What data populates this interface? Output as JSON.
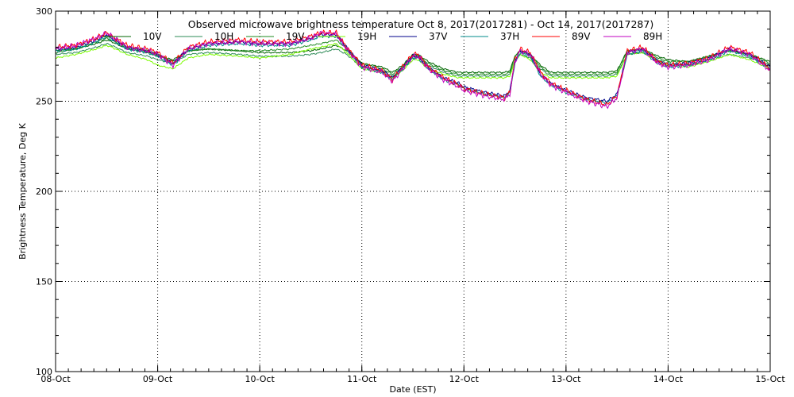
{
  "chart_data": {
    "type": "line",
    "title": "Observed microwave brightness temperature Oct  8, 2017(2017281) - Oct 14, 2017(2017287)",
    "xlabel": "Date (EST)",
    "ylabel": "Brightness Temperature, Deg K",
    "ylim": [
      100,
      300
    ],
    "yticks": [
      100,
      150,
      200,
      250,
      300
    ],
    "xlim_days": [
      0,
      7
    ],
    "xtick_labels": [
      "08-Oct",
      "09-Oct",
      "10-Oct",
      "11-Oct",
      "12-Oct",
      "13-Oct",
      "14-Oct",
      "15-Oct"
    ],
    "grid": "dotted",
    "legend_position": "top",
    "series": [
      {
        "name": "10V",
        "color": "#006400",
        "x": [
          0,
          0.2,
          0.4,
          0.5,
          0.55,
          0.7,
          0.9,
          1.0,
          1.15,
          1.3,
          1.5,
          1.8,
          2.0,
          2.3,
          2.5,
          2.6,
          2.75,
          2.85,
          3.0,
          3.2,
          3.3,
          3.4,
          3.5,
          3.55,
          3.65,
          3.8,
          3.95,
          4.0,
          4.2,
          4.4,
          4.45,
          4.5,
          4.55,
          4.65,
          4.75,
          4.85,
          5.0,
          5.2,
          5.4,
          5.5,
          5.6,
          5.75,
          5.9,
          6.0,
          6.2,
          6.4,
          6.6,
          6.8,
          7.0
        ],
        "y": [
          278,
          279,
          282,
          284,
          283,
          279,
          277,
          275,
          273,
          278,
          279,
          278,
          277,
          277,
          278,
          279,
          281,
          278,
          271,
          269,
          266,
          270,
          276,
          276,
          272,
          268,
          266,
          266,
          266,
          266,
          267,
          275,
          278,
          276,
          270,
          266,
          266,
          266,
          266,
          267,
          278,
          279,
          275,
          273,
          272,
          275,
          278,
          276,
          272
        ]
      },
      {
        "name": "10H",
        "color": "#2e8b57",
        "x": [
          0,
          0.2,
          0.4,
          0.5,
          0.55,
          0.7,
          0.9,
          1.0,
          1.15,
          1.3,
          1.5,
          1.8,
          2.0,
          2.3,
          2.5,
          2.6,
          2.75,
          2.85,
          3.0,
          3.2,
          3.3,
          3.4,
          3.5,
          3.55,
          3.65,
          3.8,
          3.95,
          4.0,
          4.2,
          4.4,
          4.45,
          4.5,
          4.55,
          4.65,
          4.75,
          4.85,
          5.0,
          5.2,
          5.4,
          5.5,
          5.6,
          5.75,
          5.9,
          6.0,
          6.2,
          6.4,
          6.6,
          6.8,
          7.0
        ],
        "y": [
          276,
          277,
          280,
          282,
          281,
          277,
          275,
          273,
          271,
          276,
          277,
          276,
          275,
          275,
          276,
          277,
          279,
          276,
          269,
          267,
          264,
          268,
          274,
          274,
          270,
          266,
          264,
          264,
          264,
          264,
          265,
          273,
          276,
          274,
          268,
          264,
          264,
          264,
          264,
          265,
          276,
          277,
          273,
          271,
          270,
          273,
          276,
          274,
          270
        ]
      },
      {
        "name": "19V",
        "color": "#228b22",
        "x": [
          0,
          0.2,
          0.4,
          0.5,
          0.55,
          0.7,
          0.9,
          1.0,
          1.15,
          1.3,
          1.5,
          1.8,
          2.0,
          2.3,
          2.5,
          2.6,
          2.75,
          2.85,
          3.0,
          3.2,
          3.3,
          3.4,
          3.5,
          3.55,
          3.65,
          3.8,
          3.95,
          4.0,
          4.2,
          4.4,
          4.45,
          4.5,
          4.55,
          4.65,
          4.75,
          4.85,
          5.0,
          5.2,
          5.4,
          5.5,
          5.6,
          5.75,
          5.9,
          6.0,
          6.2,
          6.4,
          6.6,
          6.8,
          7.0
        ],
        "y": [
          277,
          279,
          283,
          285,
          284,
          280,
          278,
          276,
          272,
          278,
          279,
          278,
          278,
          279,
          281,
          282,
          284,
          279,
          271,
          268,
          265,
          269,
          275,
          275,
          271,
          267,
          265,
          265,
          265,
          265,
          266,
          275,
          278,
          276,
          269,
          265,
          265,
          265,
          265,
          266,
          278,
          279,
          274,
          272,
          272,
          275,
          278,
          276,
          271
        ]
      },
      {
        "name": "19H",
        "color": "#7cfc00",
        "x": [
          0,
          0.2,
          0.4,
          0.5,
          0.55,
          0.7,
          0.9,
          1.0,
          1.15,
          1.3,
          1.5,
          1.8,
          2.0,
          2.3,
          2.5,
          2.6,
          2.75,
          2.85,
          3.0,
          3.2,
          3.3,
          3.4,
          3.5,
          3.55,
          3.65,
          3.8,
          3.95,
          4.0,
          4.2,
          4.4,
          4.45,
          4.5,
          4.55,
          4.65,
          4.75,
          4.85,
          5.0,
          5.2,
          5.4,
          5.5,
          5.6,
          5.75,
          5.9,
          6.0,
          6.2,
          6.4,
          6.6,
          6.8,
          7.0
        ],
        "y": [
          274,
          276,
          279,
          281,
          280,
          276,
          273,
          270,
          268,
          274,
          276,
          275,
          274,
          276,
          279,
          280,
          282,
          277,
          268,
          266,
          263,
          267,
          273,
          273,
          268,
          265,
          263,
          263,
          263,
          263,
          264,
          272,
          276,
          273,
          266,
          263,
          263,
          263,
          263,
          264,
          276,
          277,
          272,
          270,
          269,
          272,
          276,
          273,
          268
        ]
      },
      {
        "name": "37V",
        "color": "#00008b",
        "x": [
          0,
          0.2,
          0.4,
          0.5,
          0.55,
          0.7,
          0.9,
          1.0,
          1.15,
          1.3,
          1.5,
          1.8,
          2.0,
          2.3,
          2.5,
          2.6,
          2.75,
          2.85,
          3.0,
          3.2,
          3.3,
          3.4,
          3.5,
          3.55,
          3.65,
          3.8,
          3.95,
          4.0,
          4.2,
          4.4,
          4.45,
          4.5,
          4.55,
          4.65,
          4.75,
          4.85,
          5.0,
          5.2,
          5.4,
          5.5,
          5.6,
          5.75,
          5.9,
          6.0,
          6.2,
          6.4,
          6.6,
          6.8,
          7.0
        ],
        "y": [
          279,
          280,
          284,
          287,
          285,
          280,
          278,
          276,
          271,
          279,
          282,
          283,
          282,
          282,
          285,
          287,
          287,
          280,
          270,
          267,
          263,
          269,
          275,
          275,
          269,
          263,
          260,
          258,
          255,
          253,
          256,
          272,
          278,
          276,
          265,
          260,
          256,
          252,
          250,
          254,
          277,
          279,
          272,
          270,
          271,
          274,
          279,
          276,
          269
        ]
      },
      {
        "name": "37H",
        "color": "#008b8b",
        "x": [
          0,
          0.2,
          0.4,
          0.5,
          0.55,
          0.7,
          0.9,
          1.0,
          1.15,
          1.3,
          1.5,
          1.8,
          2.0,
          2.3,
          2.5,
          2.6,
          2.75,
          2.85,
          3.0,
          3.2,
          3.3,
          3.4,
          3.5,
          3.55,
          3.65,
          3.8,
          3.95,
          4.0,
          4.2,
          4.4,
          4.45,
          4.5,
          4.55,
          4.65,
          4.75,
          4.85,
          5.0,
          5.2,
          5.4,
          5.5,
          5.6,
          5.75,
          5.9,
          6.0,
          6.2,
          6.4,
          6.6,
          6.8,
          7.0
        ],
        "y": [
          278,
          279,
          283,
          286,
          284,
          279,
          277,
          275,
          270,
          278,
          281,
          282,
          281,
          281,
          284,
          286,
          286,
          279,
          269,
          266,
          262,
          268,
          274,
          274,
          268,
          262,
          259,
          257,
          254,
          252,
          255,
          271,
          277,
          275,
          264,
          259,
          255,
          251,
          249,
          253,
          276,
          278,
          271,
          269,
          270,
          273,
          278,
          275,
          268
        ]
      },
      {
        "name": "89V",
        "color": "#ff0000",
        "x": [
          0,
          0.2,
          0.4,
          0.5,
          0.55,
          0.7,
          0.9,
          1.0,
          1.15,
          1.3,
          1.5,
          1.8,
          2.0,
          2.3,
          2.5,
          2.6,
          2.75,
          2.85,
          3.0,
          3.2,
          3.3,
          3.4,
          3.5,
          3.55,
          3.65,
          3.8,
          3.95,
          4.0,
          4.2,
          4.4,
          4.45,
          4.5,
          4.55,
          4.65,
          4.75,
          4.85,
          5.0,
          5.2,
          5.4,
          5.5,
          5.6,
          5.75,
          5.9,
          6.0,
          6.2,
          6.4,
          6.6,
          6.8,
          7.0
        ],
        "y": [
          280,
          281,
          285,
          288,
          286,
          281,
          279,
          277,
          271,
          280,
          283,
          284,
          283,
          283,
          286,
          288,
          288,
          280,
          270,
          267,
          262,
          269,
          276,
          276,
          269,
          263,
          259,
          257,
          254,
          252,
          255,
          273,
          279,
          277,
          266,
          260,
          256,
          251,
          248,
          253,
          278,
          280,
          272,
          270,
          271,
          274,
          280,
          277,
          268
        ]
      },
      {
        "name": "89H",
        "color": "#c000c0",
        "x": [
          0,
          0.2,
          0.4,
          0.5,
          0.55,
          0.7,
          0.9,
          1.0,
          1.15,
          1.3,
          1.5,
          1.8,
          2.0,
          2.3,
          2.5,
          2.6,
          2.75,
          2.85,
          3.0,
          3.2,
          3.3,
          3.4,
          3.5,
          3.55,
          3.65,
          3.8,
          3.95,
          4.0,
          4.2,
          4.4,
          4.45,
          4.5,
          4.55,
          4.65,
          4.75,
          4.85,
          5.0,
          5.2,
          5.4,
          5.5,
          5.6,
          5.75,
          5.9,
          6.0,
          6.2,
          6.4,
          6.6,
          6.8,
          7.0
        ],
        "y": [
          279,
          281,
          285,
          288,
          286,
          280,
          278,
          276,
          270,
          279,
          282,
          283,
          282,
          282,
          285,
          288,
          287,
          279,
          269,
          266,
          261,
          268,
          275,
          275,
          268,
          262,
          258,
          256,
          253,
          251,
          254,
          272,
          278,
          276,
          265,
          259,
          255,
          250,
          247,
          252,
          277,
          279,
          271,
          269,
          270,
          273,
          279,
          276,
          267
        ]
      }
    ]
  }
}
